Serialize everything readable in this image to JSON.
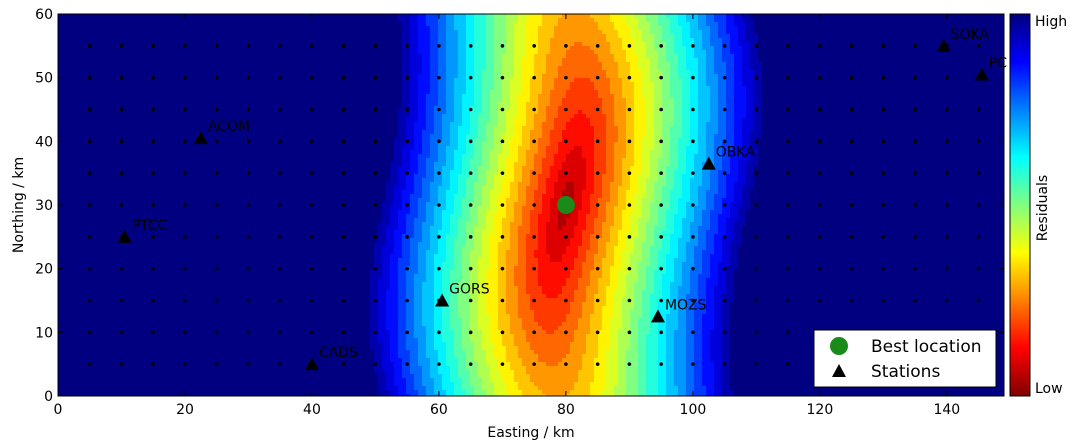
{
  "chart_data": {
    "type": "heatmap",
    "xlabel": "Easting / km",
    "ylabel": "Northing / km",
    "xlim": [
      0,
      149
    ],
    "ylim": [
      0,
      60
    ],
    "x_ticks": [
      0,
      20,
      40,
      60,
      80,
      100,
      120,
      140
    ],
    "y_ticks": [
      0,
      10,
      20,
      30,
      40,
      50,
      60
    ],
    "colormap": "jet_r",
    "colorbar": {
      "label": "Residuals",
      "high_label": "High",
      "low_label": "Low"
    },
    "residual_field": {
      "minimum_at": [
        80,
        30
      ],
      "x_spread_km": 22,
      "y_spread_km": 85,
      "contour_levels": 22
    },
    "grid_nodes": {
      "x_start": 5,
      "x_step": 5,
      "x_end": 145,
      "y_start": 5,
      "y_step": 5,
      "y_end": 55
    },
    "best_location": {
      "label": "Best location",
      "x": 80,
      "y": 30,
      "color": "#1a8a1a"
    },
    "stations_legend_label": "Stations",
    "stations": [
      {
        "name": "SOKA",
        "x": 139.5,
        "y": 55
      },
      {
        "name": "PC",
        "x": 145.5,
        "y": 50.5
      },
      {
        "name": "ACOM",
        "x": 22.5,
        "y": 40.5
      },
      {
        "name": "OBKA",
        "x": 102.5,
        "y": 36.5
      },
      {
        "name": "PTCC",
        "x": 10.5,
        "y": 25
      },
      {
        "name": "GORS",
        "x": 60.5,
        "y": 15
      },
      {
        "name": "MOZS",
        "x": 94.5,
        "y": 12.5
      },
      {
        "name": "CADS",
        "x": 40,
        "y": 5
      }
    ],
    "legend_position": "lower-right",
    "grid": false
  }
}
